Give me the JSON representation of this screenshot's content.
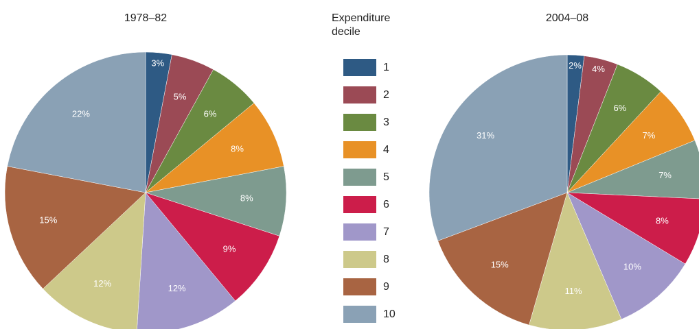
{
  "chart_data": [
    {
      "type": "pie",
      "title": "1978–82",
      "legend_title": "Expenditure decile",
      "categories": [
        "1",
        "2",
        "3",
        "4",
        "5",
        "6",
        "7",
        "8",
        "9",
        "10"
      ],
      "values": [
        3,
        5,
        6,
        8,
        8,
        9,
        12,
        12,
        15,
        22
      ],
      "value_labels": [
        "3%",
        "5%",
        "6%",
        "8%",
        "8%",
        "9%",
        "12%",
        "12%",
        "15%",
        "22%"
      ],
      "colors": [
        "#2e5a84",
        "#9b4a55",
        "#6a8a41",
        "#e89126",
        "#7e9b8f",
        "#cc1d4a",
        "#a097c9",
        "#cdc98a",
        "#a86442",
        "#8aa1b5"
      ]
    },
    {
      "type": "pie",
      "title": "2004–08",
      "categories": [
        "1",
        "2",
        "3",
        "4",
        "5",
        "6",
        "7",
        "8",
        "9",
        "10"
      ],
      "values": [
        2,
        4,
        6,
        7,
        7,
        8,
        10,
        11,
        15,
        31
      ],
      "value_labels": [
        "2%",
        "4%",
        "6%",
        "7%",
        "7%",
        "8%",
        "10%",
        "11%",
        "15%",
        "31%"
      ],
      "colors": [
        "#2e5a84",
        "#9b4a55",
        "#6a8a41",
        "#e89126",
        "#7e9b8f",
        "#cc1d4a",
        "#a097c9",
        "#cdc98a",
        "#a86442",
        "#8aa1b5"
      ]
    }
  ]
}
